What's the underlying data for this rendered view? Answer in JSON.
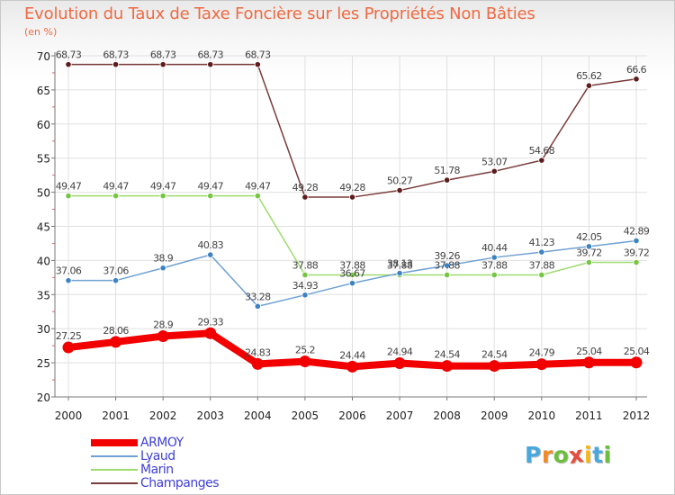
{
  "title": "Evolution du Taux de Taxe Foncière sur les Propriétés Non Bâties",
  "subtitle": "(en %)",
  "logo": {
    "letters": [
      "P",
      "r",
      "o",
      "x",
      "i",
      "t",
      "i"
    ],
    "colors": [
      "#4aa8de",
      "#f08a2a",
      "#6cbf3c",
      "#e54e3c",
      "#f3b71d",
      "#4aa8de",
      "#6cbf3c"
    ]
  },
  "colors": {
    "axis": "#777777",
    "grid": "#e0e0e0",
    "tick_text": "#222222",
    "label_text": "#444444"
  },
  "chart_data": {
    "type": "line",
    "title": "Evolution du Taux de Taxe Foncière sur les Propriétés Non Bâties",
    "ylabel": "(en %)",
    "xlabel": "",
    "x": [
      "2000",
      "2001",
      "2002",
      "2003",
      "2004",
      "2005",
      "2006",
      "2007",
      "2008",
      "2009",
      "2010",
      "2011",
      "2012"
    ],
    "ylim": [
      20,
      70
    ],
    "yticks": [
      "20",
      "25",
      "30",
      "35",
      "40",
      "45",
      "50",
      "55",
      "60",
      "65",
      "70"
    ],
    "grid": true,
    "legend_position": "bottom-left",
    "series": [
      {
        "name": "ARMOY",
        "color": "#f20000",
        "marker": "#f20000",
        "values": [
          27.25,
          28.06,
          28.9,
          29.33,
          24.83,
          25.2,
          24.44,
          24.94,
          24.54,
          24.54,
          24.79,
          25.04,
          25.04
        ],
        "labels": [
          "27.25",
          "28.06",
          "28.9",
          "29.33",
          "24.83",
          "25.2",
          "24.44",
          "24.94",
          "24.54",
          "24.54",
          "24.79",
          "25.04",
          "25.04"
        ]
      },
      {
        "name": "Lyaud",
        "color": "#6fa1d3",
        "marker": "#3d83c3",
        "values": [
          37.06,
          37.06,
          38.9,
          40.83,
          33.28,
          34.93,
          36.67,
          38.13,
          39.26,
          40.44,
          41.23,
          42.05,
          42.89
        ],
        "labels": [
          "37.06",
          "37.06",
          "38.9",
          "40.83",
          "33.28",
          "34.93",
          "36.67",
          "38.13",
          "39.26",
          "40.44",
          "41.23",
          "42.05",
          "42.89"
        ]
      },
      {
        "name": "Marin",
        "color": "#9ddc6e",
        "marker": "#76c543",
        "values": [
          49.47,
          49.47,
          49.47,
          49.47,
          49.47,
          37.88,
          37.88,
          37.88,
          37.88,
          37.88,
          37.88,
          39.72,
          39.72
        ],
        "labels": [
          "49.47",
          "49.47",
          "49.47",
          "49.47",
          "49.47",
          "37.88",
          "37.88",
          "37.88",
          "37.88",
          "37.88",
          "37.88",
          "39.72",
          "39.72"
        ]
      },
      {
        "name": "Champanges",
        "color": "#7a3b3b",
        "marker": "#5e1c1c",
        "values": [
          68.73,
          68.73,
          68.73,
          68.73,
          68.73,
          49.28,
          49.28,
          50.27,
          51.78,
          53.07,
          54.68,
          65.62,
          66.6
        ],
        "labels": [
          "68.73",
          "68.73",
          "68.73",
          "68.73",
          "68.73",
          "49.28",
          "49.28",
          "50.27",
          "51.78",
          "53.07",
          "54.68",
          "65.62",
          "66.6"
        ]
      }
    ]
  }
}
